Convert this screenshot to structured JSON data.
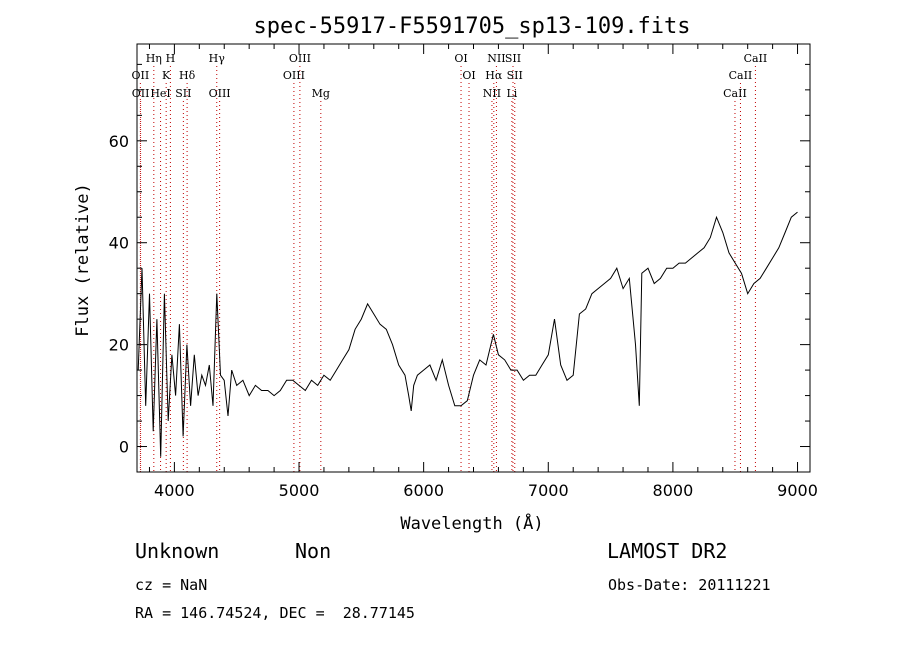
{
  "chart_data": {
    "type": "line",
    "title": "spec-55917-F5591705_sp13-109.fits",
    "xlabel": "Wavelength (Å)",
    "ylabel": "Flux (relative)",
    "xlim": [
      3700,
      9100
    ],
    "ylim": [
      -5,
      79
    ],
    "xticks": [
      4000,
      5000,
      6000,
      7000,
      8000,
      9000
    ],
    "yticks": [
      0,
      20,
      40,
      60
    ],
    "grid": false,
    "legend": "none",
    "series": [
      {
        "color": "#000000",
        "x": [
          3710,
          3740,
          3770,
          3800,
          3830,
          3860,
          3890,
          3920,
          3950,
          3980,
          4010,
          4040,
          4070,
          4100,
          4130,
          4160,
          4190,
          4220,
          4250,
          4280,
          4310,
          4340,
          4370,
          4400,
          4430,
          4460,
          4500,
          4550,
          4600,
          4650,
          4700,
          4750,
          4800,
          4850,
          4900,
          4950,
          5000,
          5050,
          5100,
          5150,
          5200,
          5250,
          5300,
          5350,
          5400,
          5450,
          5500,
          5550,
          5600,
          5650,
          5700,
          5750,
          5800,
          5850,
          5880,
          5900,
          5920,
          5950,
          6000,
          6050,
          6100,
          6150,
          6200,
          6250,
          6300,
          6350,
          6400,
          6450,
          6500,
          6560,
          6600,
          6650,
          6700,
          6750,
          6800,
          6850,
          6900,
          6950,
          7000,
          7050,
          7100,
          7150,
          7200,
          7250,
          7300,
          7350,
          7400,
          7450,
          7500,
          7550,
          7600,
          7650,
          7700,
          7730,
          7750,
          7800,
          7850,
          7900,
          7950,
          8000,
          8050,
          8100,
          8150,
          8200,
          8250,
          8300,
          8350,
          8400,
          8450,
          8500,
          8550,
          8600,
          8650,
          8700,
          8750,
          8800,
          8850,
          8900,
          8950,
          9000
        ],
        "y": [
          15,
          35,
          8,
          30,
          3,
          25,
          -2,
          30,
          5,
          18,
          10,
          24,
          2,
          20,
          8,
          18,
          10,
          14,
          12,
          16,
          8,
          30,
          14,
          13,
          6,
          15,
          12,
          13,
          10,
          12,
          11,
          11,
          10,
          11,
          13,
          13,
          12,
          11,
          13,
          12,
          14,
          13,
          15,
          17,
          19,
          23,
          25,
          28,
          26,
          24,
          23,
          20,
          16,
          14,
          10,
          7,
          12,
          14,
          15,
          16,
          13,
          17,
          12,
          8,
          8,
          9,
          14,
          17,
          16,
          22,
          18,
          17,
          15,
          15,
          13,
          14,
          14,
          16,
          18,
          25,
          16,
          13,
          14,
          26,
          27,
          30,
          31,
          32,
          33,
          35,
          31,
          33,
          20,
          8,
          34,
          35,
          32,
          33,
          35,
          35,
          36,
          36,
          37,
          38,
          39,
          41,
          45,
          42,
          38,
          36,
          34,
          30,
          32,
          33,
          35,
          37,
          39,
          42,
          45,
          46
        ]
      }
    ],
    "lines": {
      "row1": [
        {
          "label": "Hη",
          "x": 3835
        },
        {
          "label": "H",
          "x": 3968
        },
        {
          "label": "Hγ",
          "x": 4340
        },
        {
          "label": "OIII",
          "x": 5007
        },
        {
          "label": "OI",
          "x": 6300
        },
        {
          "label": "NII",
          "x": 6584
        },
        {
          "label": "SII",
          "x": 6717
        },
        {
          "label": "CaII",
          "x": 8662
        }
      ],
      "row2": [
        {
          "label": "OII",
          "x": 3727
        },
        {
          "label": "K",
          "x": 3934
        },
        {
          "label": "Hδ",
          "x": 4102
        },
        {
          "label": "OIII",
          "x": 4959
        },
        {
          "label": "OI",
          "x": 6364
        },
        {
          "label": "Hα",
          "x": 6563
        },
        {
          "label": "SII",
          "x": 6731
        },
        {
          "label": "CaII",
          "x": 8542
        }
      ],
      "row3": [
        {
          "label": "OII",
          "x": 3729
        },
        {
          "label": "HeI",
          "x": 3889
        },
        {
          "label": "SII",
          "x": 4072
        },
        {
          "label": "OIII",
          "x": 4363
        },
        {
          "label": "Mg",
          "x": 5175
        },
        {
          "label": "NII",
          "x": 6548
        },
        {
          "label": "Li",
          "x": 6708
        },
        {
          "label": "CaII",
          "x": 8498
        }
      ]
    }
  },
  "info": {
    "class": "Unknown",
    "subclass": "Non",
    "survey": "LAMOST DR2",
    "cz": "cz = NaN",
    "obs_date": "Obs-Date: 20111221",
    "coords": "RA = 146.74524, DEC =  28.77145"
  }
}
